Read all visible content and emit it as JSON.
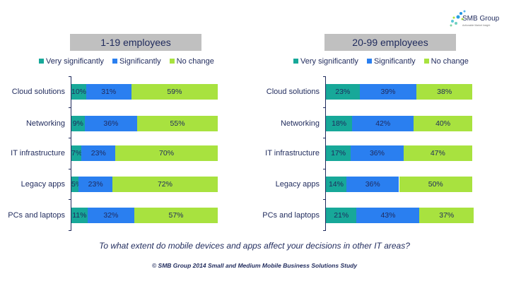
{
  "logo": {
    "name": "SMB Group",
    "tagline": "Actionable Market Insight"
  },
  "colors": {
    "very_significantly": "#17a899",
    "significantly": "#2a7ff0",
    "no_change": "#a8e23f"
  },
  "chart_data": [
    {
      "type": "bar",
      "orientation": "horizontal",
      "stacked": true,
      "title": "1-19 employees",
      "categories": [
        "Cloud solutions",
        "Networking",
        "IT infrastructure",
        "Legacy apps",
        "PCs and laptops"
      ],
      "series": [
        {
          "name": "Very significantly",
          "values": [
            10,
            9,
            7,
            5,
            11
          ],
          "labels": [
            "10%",
            "9%",
            "7%",
            "5%",
            "11%"
          ]
        },
        {
          "name": "Significantly",
          "values": [
            31,
            36,
            23,
            23,
            32
          ],
          "labels": [
            "31%",
            "36%",
            "23%",
            "23%",
            "32%"
          ]
        },
        {
          "name": "No change",
          "values": [
            59,
            55,
            70,
            72,
            57
          ],
          "labels": [
            "59%",
            "55%",
            "70%",
            "72%",
            "57%"
          ]
        }
      ],
      "legend": "top",
      "xlim": [
        0,
        100
      ]
    },
    {
      "type": "bar",
      "orientation": "horizontal",
      "stacked": true,
      "title": "20-99 employees",
      "categories": [
        "Cloud solutions",
        "Networking",
        "IT infrastructure",
        "Legacy apps",
        "PCs and laptops"
      ],
      "series": [
        {
          "name": "Very significantly",
          "values": [
            23,
            18,
            17,
            14,
            21
          ],
          "labels": [
            "23%",
            "18%",
            "17%",
            "14%",
            "21%"
          ]
        },
        {
          "name": "Significantly",
          "values": [
            39,
            42,
            36,
            36,
            43
          ],
          "labels": [
            "39%",
            "42%",
            "36%",
            "36%",
            "43%"
          ]
        },
        {
          "name": "No change",
          "values": [
            38,
            40,
            47,
            50,
            37
          ],
          "labels": [
            "38%",
            "40%",
            "47%",
            "50%",
            "37%"
          ]
        }
      ],
      "legend": "top",
      "xlim": [
        0,
        100
      ]
    }
  ],
  "question": "To what extent do mobile devices and apps affect your decisions in other IT areas?",
  "credit": "© SMB Group 2014 Small and Medium Mobile Business Solutions Study"
}
